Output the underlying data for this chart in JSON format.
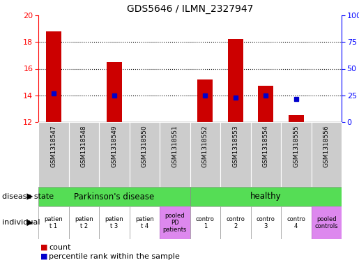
{
  "title": "GDS5646 / ILMN_2327947",
  "samples": [
    "GSM1318547",
    "GSM1318548",
    "GSM1318549",
    "GSM1318550",
    "GSM1318551",
    "GSM1318552",
    "GSM1318553",
    "GSM1318554",
    "GSM1318555",
    "GSM1318556"
  ],
  "bar_values": [
    18.8,
    12.0,
    16.5,
    12.0,
    12.0,
    15.2,
    18.2,
    14.7,
    12.5,
    12.0
  ],
  "dot_values": [
    14.15,
    null,
    14.0,
    null,
    null,
    14.0,
    13.85,
    14.0,
    13.75,
    null
  ],
  "ylim_left": [
    12,
    20
  ],
  "ylim_right": [
    0,
    100
  ],
  "yticks_left": [
    12,
    14,
    16,
    18,
    20
  ],
  "yticks_right": [
    0,
    25,
    50,
    75,
    100
  ],
  "bar_color": "#cc0000",
  "dot_color": "#0000cc",
  "bar_bottom": 12.0,
  "grid_lines": [
    14,
    16,
    18
  ],
  "pd_count": 5,
  "healthy_count": 5,
  "ds_label_pd": "Parkinson's disease",
  "ds_label_healthy": "healthy",
  "ds_color": "#55dd55",
  "sample_bg_color": "#cccccc",
  "ind_labels": [
    "patien\nt 1",
    "patien\nt 2",
    "patien\nt 3",
    "patien\nt 4",
    "pooled\nPD\npatients",
    "contro\n1",
    "contro\n2",
    "contro\n3",
    "contro\n4",
    "pooled\ncontrols"
  ],
  "ind_colors": [
    "#ffffff",
    "#ffffff",
    "#ffffff",
    "#ffffff",
    "#dd88ee",
    "#ffffff",
    "#ffffff",
    "#ffffff",
    "#ffffff",
    "#dd88ee"
  ],
  "ind_border_colors": [
    "#999999",
    "#999999",
    "#999999",
    "#999999",
    "#bb66cc",
    "#999999",
    "#999999",
    "#999999",
    "#999999",
    "#bb66cc"
  ],
  "row_label_ds": "disease state",
  "row_label_ind": "individual",
  "legend_items": [
    {
      "color": "#cc0000",
      "label": "count"
    },
    {
      "color": "#0000cc",
      "label": "percentile rank within the sample"
    }
  ],
  "fig_width": 5.15,
  "fig_height": 3.93
}
